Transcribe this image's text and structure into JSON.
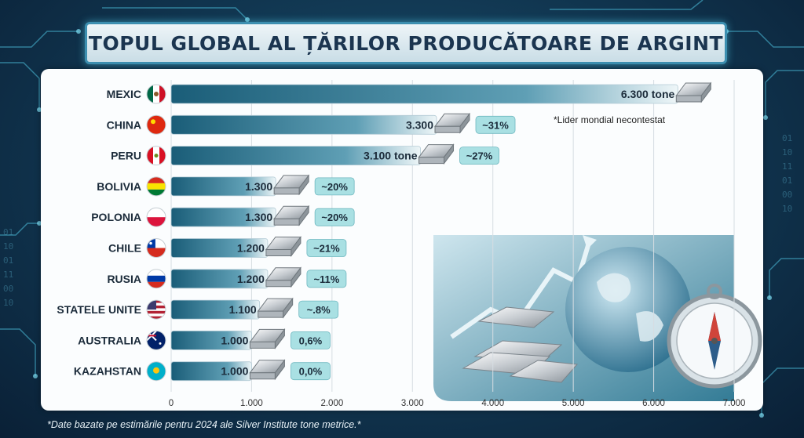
{
  "title": "TOPUL GLOBAL AL ȚĂRILOR PRODUCĂTOARE DE ARGINT",
  "footnote": "*Date bazate pe estimările pentru 2024 ale Silver Institute tone metrice.*",
  "leader_note": "*Lider mondial necontestat",
  "colors": {
    "bar_dark": "#1a5d78",
    "bar_light": "#eaf3f6",
    "pct_badge": "#a9e0e3",
    "grid": "#d6dde2"
  },
  "chart_data": {
    "type": "bar",
    "orientation": "horizontal",
    "title": "TOPUL GLOBAL AL ȚĂRILOR PRODUCĂTOARE DE ARGINT",
    "categories": [
      "MEXIC",
      "CHINA",
      "PERU",
      "BOLIVIA",
      "POLONIA",
      "CHILE",
      "RUSIA",
      "STATELE UNITE",
      "AUSTRALIA",
      "KAZAHSTAN"
    ],
    "values": [
      6300,
      3300,
      3100,
      1300,
      1300,
      1200,
      1200,
      1100,
      1000,
      1000
    ],
    "value_labels": [
      "6.300 tone",
      "3.300",
      "3.100 tone",
      "1.300",
      "1.300",
      "1.200",
      "1.200",
      "1.100",
      "1.000",
      "1.000"
    ],
    "percent_labels": [
      "",
      "~31%",
      "~27%",
      "~20%",
      "~20%",
      "~21%",
      "~11%",
      "~.8%",
      "0,6%",
      "0,0%"
    ],
    "flags": [
      "mexico-flag-icon",
      "china-flag-icon",
      "peru-flag-icon",
      "bolivia-flag-icon",
      "poland-flag-icon",
      "chile-flag-icon",
      "russia-flag-icon",
      "usa-flag-icon",
      "australia-flag-icon",
      "kazakhstan-flag-icon"
    ],
    "xlim": [
      0,
      7000
    ],
    "xticks": [
      0,
      1000,
      2000,
      3000,
      4000,
      5000,
      6000,
      7000
    ],
    "xtick_labels": [
      "0",
      "1.000",
      "2.000",
      "3.000",
      "4.000",
      "5.000",
      "6.000",
      "7.000"
    ],
    "grid": true
  }
}
